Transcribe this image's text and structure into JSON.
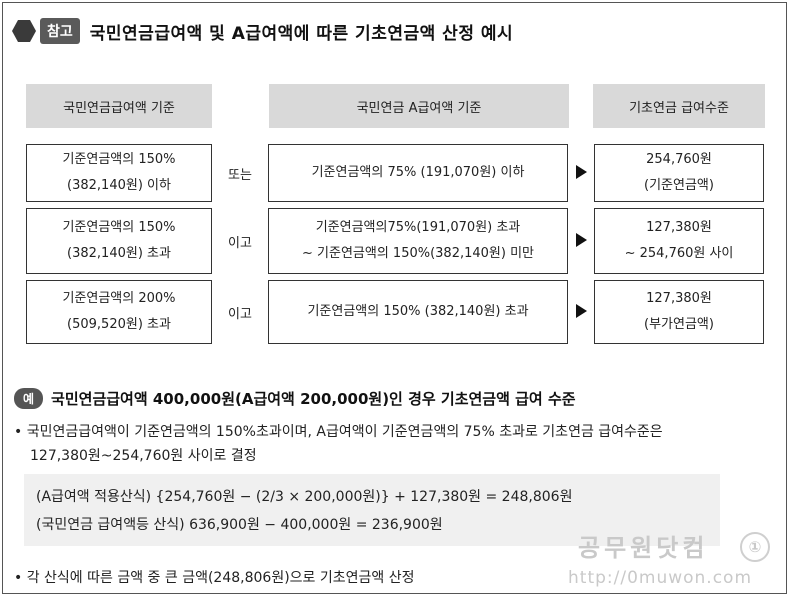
{
  "title": {
    "tag": "참고",
    "text": "국민연금급여액 및 A급여액에 따른 기초연금액 산정 예시"
  },
  "headers": [
    "국민연금급여액 기준",
    "국민연금 A급여액 기준",
    "기초연금 급여수준"
  ],
  "rows": [
    {
      "left": [
        "기준연금액의 150%",
        "(382,140원) 이하"
      ],
      "connector": "또는",
      "middle": [
        "기준연금액의 75% (191,070원) 이하"
      ],
      "right": [
        "254,760원",
        "(기준연금액)"
      ]
    },
    {
      "left": [
        "기준연금액의 150%",
        "(382,140원) 초과"
      ],
      "connector": "이고",
      "middle": [
        "기준연금액의75%(191,070원) 초과",
        "~ 기준연금액의 150%(382,140원) 미만"
      ],
      "right": [
        "127,380원",
        "~ 254,760원 사이"
      ]
    },
    {
      "left": [
        "기준연금액의 200%",
        "(509,520원) 초과"
      ],
      "connector": "이고",
      "middle": [
        "기준연금액의 150% (382,140원) 초과"
      ],
      "right": [
        "127,380원",
        "(부가연금액)"
      ]
    }
  ],
  "example": {
    "pill": "예",
    "title": "국민연금급여액 400,000원(A급여액 200,000원)인 경우 기초연금액 급여 수준",
    "bullet1_line1": "• 국민연금급여액이 기준연금액의 150%초과이며, A급여액이 기준연금액의 75% 초과로 기초연금 급여수준은",
    "bullet1_line2": "127,380원~254,760원 사이로 결정",
    "calc1": "(A급여액 적용산식) {254,760원 − (2/3 × 200,000원)} + 127,380원 = 248,806원",
    "calc2": "(국민연금 급여액등 산식) 636,900원 − 400,000원 = 236,900원",
    "bullet2": "• 각 산식에 따른 금액 중 큰 금액(248,806원)으로 기초연금액 산정"
  },
  "watermark": {
    "name": "공무원닷컴",
    "url": "http://0muwon.com"
  }
}
